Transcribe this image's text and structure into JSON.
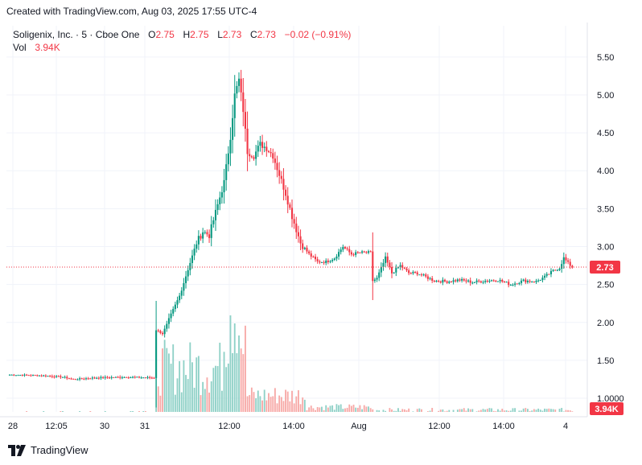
{
  "caption": "Created with TradingView.com, Aug 03, 2025 17:55 UTC-4",
  "brand": "TradingView",
  "legend": {
    "symbol": "Soligenix, Inc. · 5 · Cboe One",
    "o_key": "O",
    "o_val": "2.75",
    "h_key": "H",
    "h_val": "2.75",
    "l_key": "L",
    "l_val": "2.73",
    "c_key": "C",
    "c_val": "2.73",
    "change": "−0.02 (−0.91%)",
    "vol_key": "Vol",
    "vol_val": "3.94K"
  },
  "colors": {
    "up": "#089981",
    "down": "#f23645",
    "vol_up": "#8fd1c7",
    "vol_down": "#f7a9a7",
    "last_price_line": "#f23645",
    "grid": "#f0f3fa"
  },
  "chart_data": {
    "type": "candlestick",
    "y_ticks": [
      "5.50",
      "5.00",
      "4.50",
      "4.00",
      "3.50",
      "3.00",
      "2.50",
      "2.00",
      "1.50",
      "1.0000"
    ],
    "y_tick_values": [
      5.5,
      5.0,
      4.5,
      4.0,
      3.5,
      3.0,
      2.5,
      2.0,
      1.5,
      1.0
    ],
    "x_ticks": [
      "28",
      "12:05",
      "30",
      "31",
      "12:00",
      "14:00",
      "Aug",
      "12:00",
      "14:00",
      "4"
    ],
    "last_price": "2.73",
    "last_price_value": 2.73,
    "last_volume": "3.94K",
    "ylim": [
      0.82,
      5.7
    ],
    "price_path": [
      {
        "i": 0,
        "p": 1.31
      },
      {
        "i": 15,
        "p": 1.3
      },
      {
        "i": 25,
        "p": 1.28
      },
      {
        "i": 30,
        "p": 1.25
      },
      {
        "i": 40,
        "p": 1.27
      },
      {
        "i": 55,
        "p": 1.28
      },
      {
        "i": 68,
        "p": 1.27
      },
      {
        "i": 69,
        "p": 1.9
      },
      {
        "i": 72,
        "p": 1.85
      },
      {
        "i": 76,
        "p": 2.1
      },
      {
        "i": 80,
        "p": 2.35
      },
      {
        "i": 84,
        "p": 2.7
      },
      {
        "i": 88,
        "p": 3.05
      },
      {
        "i": 91,
        "p": 3.2
      },
      {
        "i": 94,
        "p": 3.15
      },
      {
        "i": 98,
        "p": 3.55
      },
      {
        "i": 101,
        "p": 3.85
      },
      {
        "i": 104,
        "p": 4.45
      },
      {
        "i": 106,
        "p": 5.0
      },
      {
        "i": 108,
        "p": 5.2
      },
      {
        "i": 110,
        "p": 4.8
      },
      {
        "i": 112,
        "p": 4.25
      },
      {
        "i": 115,
        "p": 4.2
      },
      {
        "i": 118,
        "p": 4.35
      },
      {
        "i": 121,
        "p": 4.3
      },
      {
        "i": 124,
        "p": 4.2
      },
      {
        "i": 127,
        "p": 3.95
      },
      {
        "i": 130,
        "p": 3.7
      },
      {
        "i": 133,
        "p": 3.4
      },
      {
        "i": 137,
        "p": 3.05
      },
      {
        "i": 141,
        "p": 2.9
      },
      {
        "i": 145,
        "p": 2.8
      },
      {
        "i": 149,
        "p": 2.8
      },
      {
        "i": 153,
        "p": 2.85
      },
      {
        "i": 157,
        "p": 3.0
      },
      {
        "i": 161,
        "p": 2.9
      },
      {
        "i": 165,
        "p": 2.92
      },
      {
        "i": 170,
        "p": 2.92
      },
      {
        "i": 171,
        "p": 2.55
      },
      {
        "i": 173,
        "p": 2.58
      },
      {
        "i": 177,
        "p": 2.85
      },
      {
        "i": 180,
        "p": 2.65
      },
      {
        "i": 184,
        "p": 2.75
      },
      {
        "i": 188,
        "p": 2.65
      },
      {
        "i": 192,
        "p": 2.65
      },
      {
        "i": 196,
        "p": 2.6
      },
      {
        "i": 200,
        "p": 2.55
      },
      {
        "i": 206,
        "p": 2.54
      },
      {
        "i": 212,
        "p": 2.56
      },
      {
        "i": 218,
        "p": 2.53
      },
      {
        "i": 224,
        "p": 2.55
      },
      {
        "i": 230,
        "p": 2.56
      },
      {
        "i": 236,
        "p": 2.5
      },
      {
        "i": 242,
        "p": 2.55
      },
      {
        "i": 248,
        "p": 2.54
      },
      {
        "i": 252,
        "p": 2.6
      },
      {
        "i": 256,
        "p": 2.68
      },
      {
        "i": 259,
        "p": 2.72
      },
      {
        "i": 261,
        "p": 2.85
      },
      {
        "i": 263,
        "p": 2.78
      },
      {
        "i": 265,
        "p": 2.73
      }
    ]
  }
}
